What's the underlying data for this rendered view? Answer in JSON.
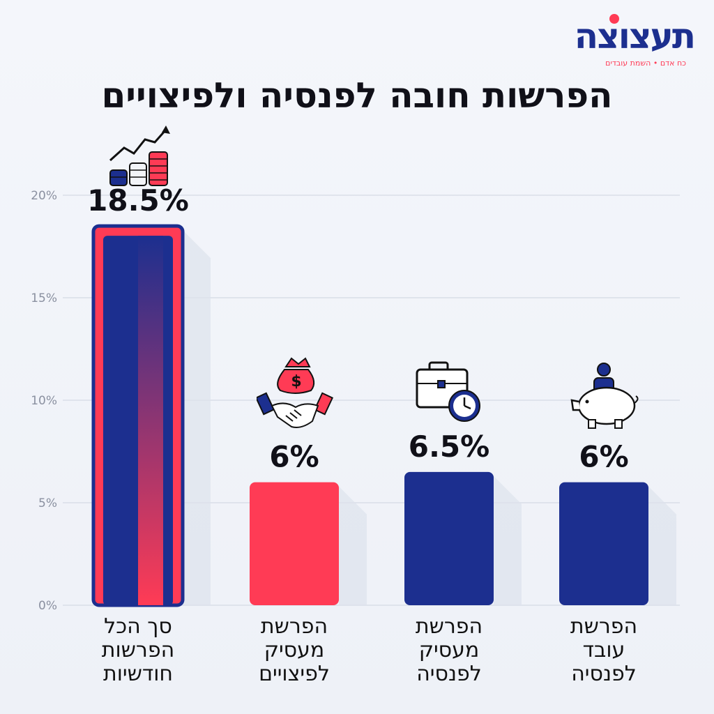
{
  "brand": {
    "name": "תעצוצה",
    "tagline": "כח אדם • השמת עובדים"
  },
  "colors": {
    "navy": "#1c2f8f",
    "red": "#ff3b55",
    "grid": "#d9dee8"
  },
  "chart_data": {
    "type": "bar",
    "title": "הפרשות חובה לפנסיה ולפיצויים",
    "categories": [
      "סך הכל\nהפרשות\nחודשיות",
      "הפרשת\nמעסיק\nלפיצויים",
      "הפרשת\nמעסיק\nלפנסיה",
      "הפרשת\nעובד\nלפנסיה"
    ],
    "values": [
      18.5,
      6,
      6.5,
      6
    ],
    "value_labels": [
      "18.5%",
      "6%",
      "6.5%",
      "6%"
    ],
    "bar_colors": [
      "navy-red",
      "red",
      "navy",
      "navy"
    ],
    "icons": [
      "stacked-coins-growth-icon",
      "handshake-money-bag-icon",
      "briefcase-clock-icon",
      "piggy-bank-person-icon"
    ],
    "ylim": [
      0,
      20
    ],
    "yticks": [
      0,
      5,
      10,
      15,
      20
    ],
    "ytick_labels": [
      "0%",
      "5%",
      "10%",
      "15%",
      "20%"
    ],
    "grid": true
  }
}
